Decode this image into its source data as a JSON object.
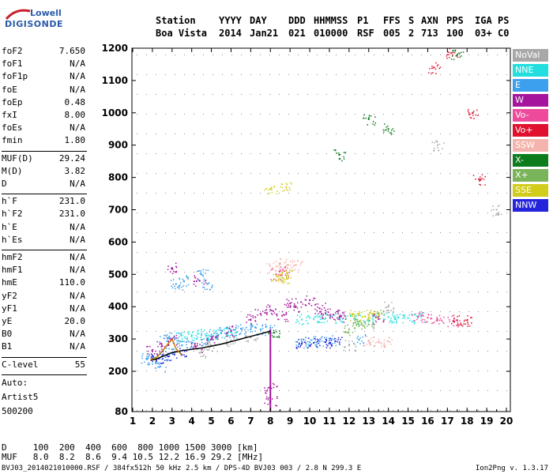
{
  "logo": {
    "line1": "Lowell",
    "line2": "DIGISONDE"
  },
  "header": {
    "labels": [
      "Station",
      "YYYY",
      "DAY",
      "DDD",
      "HHMMSS",
      "P1",
      "FFS",
      "S",
      "AXN",
      "PPS",
      "IGA",
      "PS"
    ],
    "values": [
      "Boa Vista",
      "2014",
      "Jan21",
      "021",
      "010000",
      "RSF",
      "005",
      "2",
      "713",
      "100",
      "03+",
      "C0"
    ]
  },
  "params_group1": [
    {
      "name": "foF2",
      "value": "7.650"
    },
    {
      "name": "foF1",
      "value": "N/A"
    },
    {
      "name": "foF1p",
      "value": "N/A"
    },
    {
      "name": "foE",
      "value": "N/A"
    },
    {
      "name": "foEp",
      "value": "0.48"
    },
    {
      "name": "fxI",
      "value": "8.00"
    },
    {
      "name": "foEs",
      "value": "N/A"
    },
    {
      "name": "fmin",
      "value": "1.80"
    }
  ],
  "params_group2": [
    {
      "name": "MUF(D)",
      "value": "29.24"
    },
    {
      "name": "M(D)",
      "value": "3.82"
    },
    {
      "name": "D",
      "value": "N/A"
    }
  ],
  "params_group3": [
    {
      "name": "h`F",
      "value": "231.0"
    },
    {
      "name": "h`F2",
      "value": "231.0"
    },
    {
      "name": "h`E",
      "value": "N/A"
    },
    {
      "name": "h`Es",
      "value": "N/A"
    }
  ],
  "params_group4": [
    {
      "name": "hmF2",
      "value": "N/A"
    },
    {
      "name": "hmF1",
      "value": "N/A"
    },
    {
      "name": "hmE",
      "value": "110.0"
    },
    {
      "name": "yF2",
      "value": "N/A"
    },
    {
      "name": "yF1",
      "value": "N/A"
    },
    {
      "name": "yE",
      "value": "20.0"
    },
    {
      "name": "B0",
      "value": "N/A"
    },
    {
      "name": "B1",
      "value": "N/A"
    }
  ],
  "params_group5": [
    {
      "name": "C-level",
      "value": "55"
    }
  ],
  "auto": {
    "line1": "Auto:",
    "line2": "Artist5",
    "line3": "500200"
  },
  "legend": [
    {
      "label": "NoVal",
      "color": "#a8a8a8"
    },
    {
      "label": "NNE",
      "color": "#22dede"
    },
    {
      "label": "E",
      "color": "#3da0ee"
    },
    {
      "label": "W",
      "color": "#a4149c"
    },
    {
      "label": "Vo-",
      "color": "#ee4a9c"
    },
    {
      "label": "Vo+",
      "color": "#e0102e"
    },
    {
      "label": "SSW",
      "color": "#f4b4ae"
    },
    {
      "label": "X-",
      "color": "#0c7c1c"
    },
    {
      "label": "X+",
      "color": "#7ab45a"
    },
    {
      "label": "SSE",
      "color": "#d2cc1a"
    },
    {
      "label": "NNW",
      "color": "#2424dc"
    }
  ],
  "footer": {
    "d_row": "D     100  200  400  600  800 1000 1500 3000 [km]",
    "muf_row": "MUF   8.0  8.2  8.6  9.4 10.5 12.2 16.9 29.2 [MHz]",
    "file_line": "BVJ03_2014021010000.RSF / 384fx512h 50 kHz 2.5 km / DPS-4D BVJ03 003 / 2.8 N 299.3 E",
    "version": "Ion2Png v. 1.3.17"
  },
  "chart_data": {
    "type": "scatter",
    "title": "",
    "xlabel": "",
    "ylabel": "",
    "xlim": [
      0.96,
      20.2
    ],
    "ylim": [
      80,
      1200
    ],
    "x_ticks": [
      1,
      2,
      3,
      4,
      5,
      6,
      7,
      8,
      9,
      10,
      11,
      12,
      13,
      14,
      15,
      16,
      17,
      18,
      19,
      20
    ],
    "y_ticks": [
      80,
      200,
      300,
      400,
      500,
      600,
      700,
      800,
      900,
      1000,
      1100,
      1200
    ],
    "grid": true,
    "series": [
      {
        "name": "E",
        "color": "#3da0ee",
        "points": [
          [
            1.7,
            240
          ],
          [
            2.0,
            238
          ],
          [
            2.5,
            250
          ],
          [
            3.0,
            268
          ],
          [
            3.5,
            280
          ],
          [
            4.0,
            288
          ],
          [
            4.5,
            298
          ],
          [
            5.0,
            308
          ],
          [
            5.5,
            320
          ],
          [
            6.0,
            328
          ],
          [
            6.5,
            332
          ],
          [
            7.0,
            330
          ],
          [
            7.5,
            330
          ],
          [
            8.0,
            335
          ],
          [
            9.6,
            292
          ],
          [
            10.0,
            290
          ],
          [
            10.5,
            292
          ],
          [
            11.0,
            295
          ],
          [
            12.5,
            298
          ],
          [
            2.4,
            215
          ],
          [
            3.2,
            470
          ],
          [
            3.6,
            480
          ],
          [
            4.5,
            500
          ],
          [
            4.8,
            470
          ],
          [
            2.6,
            302
          ],
          [
            3.1,
            304
          ]
        ]
      },
      {
        "name": "NNE",
        "color": "#22dede",
        "points": [
          [
            3.5,
            310
          ],
          [
            4.0,
            312
          ],
          [
            4.5,
            316
          ],
          [
            5.0,
            314
          ],
          [
            5.5,
            318
          ],
          [
            6.0,
            320
          ],
          [
            9.6,
            360
          ],
          [
            10.2,
            362
          ],
          [
            10.8,
            364
          ],
          [
            11.5,
            365
          ],
          [
            12.3,
            362
          ],
          [
            13.0,
            363
          ],
          [
            14.0,
            368
          ],
          [
            14.5,
            366
          ],
          [
            15.0,
            365
          ],
          [
            15.5,
            366
          ]
        ]
      },
      {
        "name": "W",
        "color": "#a4149c",
        "points": [
          [
            2.0,
            262
          ],
          [
            2.5,
            278
          ],
          [
            3.0,
            300
          ],
          [
            4.2,
            275
          ],
          [
            5.0,
            300
          ],
          [
            6.0,
            325
          ],
          [
            7.0,
            360
          ],
          [
            7.5,
            378
          ],
          [
            8.0,
            390
          ],
          [
            8.6,
            372
          ],
          [
            9.0,
            410
          ],
          [
            9.3,
            400
          ],
          [
            10.0,
            420
          ],
          [
            10.5,
            395
          ],
          [
            10.8,
            380
          ],
          [
            11.2,
            375
          ],
          [
            11.6,
            370
          ],
          [
            13.5,
            362
          ],
          [
            3.0,
            520
          ],
          [
            4.4,
            480
          ],
          [
            8.0,
            150
          ],
          [
            8.0,
            110
          ]
        ]
      },
      {
        "name": "Vo-",
        "color": "#ee4a9c",
        "points": [
          [
            15.5,
            368
          ],
          [
            16.0,
            366
          ],
          [
            16.5,
            360
          ],
          [
            17.3,
            356
          ],
          [
            8.3,
            500
          ],
          [
            8.7,
            510
          ]
        ]
      },
      {
        "name": "Vo+",
        "color": "#e0102e",
        "points": [
          [
            17.5,
            358
          ],
          [
            18.0,
            358
          ],
          [
            16.3,
            1140
          ],
          [
            17.2,
            1185
          ],
          [
            18.3,
            1000
          ],
          [
            18.6,
            795
          ]
        ]
      },
      {
        "name": "SSW",
        "color": "#f4b4ae",
        "points": [
          [
            8.1,
            520
          ],
          [
            8.5,
            535
          ],
          [
            8.9,
            530
          ],
          [
            9.3,
            530
          ],
          [
            13.0,
            295
          ],
          [
            13.5,
            292
          ],
          [
            14.0,
            292
          ]
        ]
      },
      {
        "name": "X-",
        "color": "#0c7c1c",
        "points": [
          [
            11.5,
            870
          ],
          [
            13.0,
            980
          ],
          [
            14.0,
            950
          ],
          [
            17.5,
            1180
          ],
          [
            8.2,
            320
          ]
        ]
      },
      {
        "name": "X+",
        "color": "#7ab45a",
        "points": [
          [
            12.0,
            330
          ],
          [
            12.5,
            340
          ],
          [
            13.0,
            345
          ],
          [
            12.4,
            360
          ],
          [
            13.5,
            380
          ]
        ]
      },
      {
        "name": "SSE",
        "color": "#d2cc1a",
        "points": [
          [
            8.3,
            495
          ],
          [
            8.6,
            490
          ],
          [
            8.9,
            498
          ],
          [
            8.0,
            765
          ],
          [
            8.8,
            770
          ],
          [
            12.2,
            375
          ],
          [
            12.8,
            370
          ],
          [
            13.2,
            378
          ]
        ]
      },
      {
        "name": "NNW",
        "color": "#2424dc",
        "points": [
          [
            2.2,
            236
          ],
          [
            2.8,
            246
          ],
          [
            3.4,
            258
          ],
          [
            9.6,
            286
          ],
          [
            10.2,
            288
          ],
          [
            10.8,
            290
          ],
          [
            11.3,
            293
          ]
        ]
      },
      {
        "name": "NoVal",
        "color": "#a8a8a8",
        "points": [
          [
            5.0,
            280
          ],
          [
            6.0,
            295
          ],
          [
            7.0,
            305
          ],
          [
            4.5,
            260
          ],
          [
            12.0,
            280
          ],
          [
            14.0,
            400
          ],
          [
            16.5,
            900
          ],
          [
            19.5,
            700
          ]
        ]
      }
    ],
    "trace": {
      "color": "#000000",
      "points": [
        [
          1.9,
          234
        ],
        [
          2.2,
          238
        ],
        [
          2.6,
          248
        ],
        [
          3.0,
          258
        ],
        [
          3.5,
          264
        ],
        [
          4.0,
          268
        ],
        [
          4.5,
          272
        ],
        [
          5.0,
          278
        ],
        [
          5.5,
          284
        ],
        [
          6.0,
          292
        ],
        [
          6.5,
          300
        ],
        [
          7.0,
          308
        ],
        [
          7.5,
          316
        ],
        [
          8.0,
          324
        ]
      ]
    },
    "trace2": {
      "color": "#c87a00",
      "points": [
        [
          1.9,
          236
        ],
        [
          2.2,
          242
        ],
        [
          2.5,
          262
        ],
        [
          2.8,
          285
        ],
        [
          3.0,
          300
        ],
        [
          3.2,
          270
        ],
        [
          3.5,
          250
        ]
      ]
    }
  }
}
